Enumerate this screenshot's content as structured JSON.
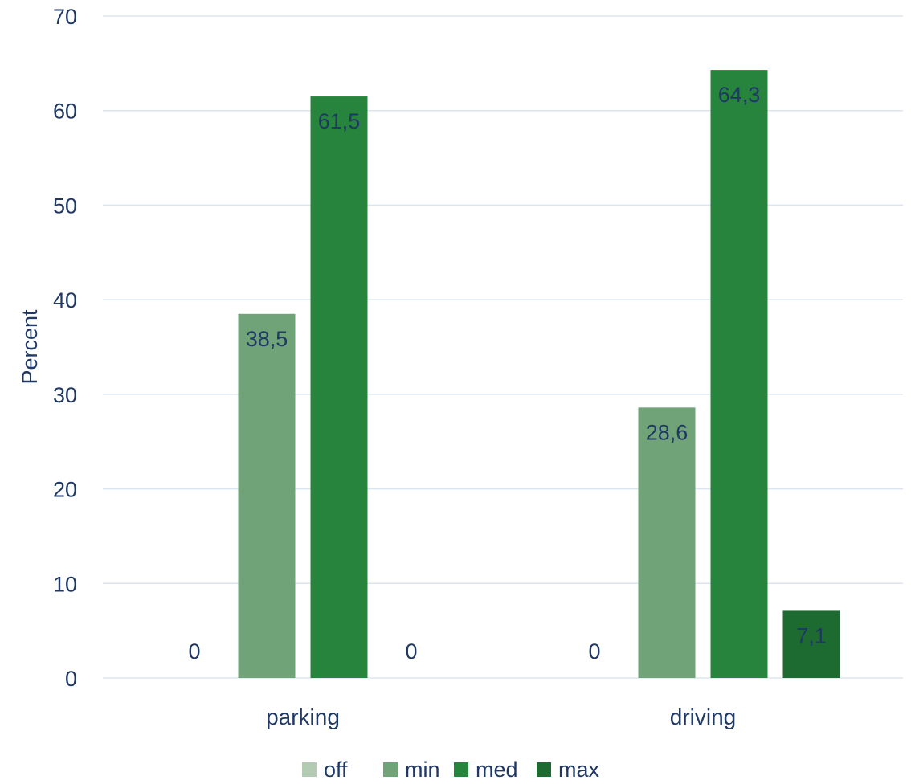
{
  "chart_data": {
    "type": "bar",
    "title": "",
    "xlabel": "",
    "ylabel": "Percent",
    "ylim": [
      0,
      70
    ],
    "yticks": [
      "0",
      "10",
      "20",
      "30",
      "40",
      "50",
      "60",
      "70"
    ],
    "categories": [
      "parking",
      "driving"
    ],
    "series": [
      {
        "name": "off",
        "values": [
          0,
          0
        ],
        "labels": [
          "0",
          "0"
        ],
        "color": "#b3cbb3"
      },
      {
        "name": "min",
        "values": [
          38.5,
          28.6
        ],
        "labels": [
          "38,5",
          "28,6"
        ],
        "color": "#70a378"
      },
      {
        "name": "med",
        "values": [
          61.5,
          64.3
        ],
        "labels": [
          "61,5",
          "64,3"
        ],
        "color": "#26843c"
      },
      {
        "name": "max",
        "values": [
          0,
          7.1
        ],
        "labels": [
          "0",
          "7,1"
        ],
        "color": "#1d6b31"
      }
    ],
    "grid": true,
    "legend": "bottom-center",
    "label_color": "#1f3864",
    "grid_color": "#dbe5f1"
  }
}
